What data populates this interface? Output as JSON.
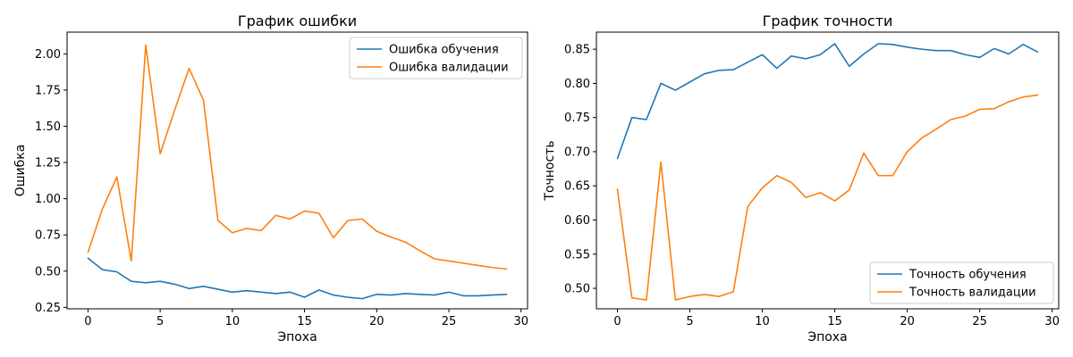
{
  "chart_data": [
    {
      "type": "line",
      "title": "График ошибки",
      "xlabel": "Эпоха",
      "ylabel": "Ошибка",
      "xlim": [
        -1.45,
        30.45
      ],
      "ylim": [
        0.24,
        2.15
      ],
      "xticks": [
        0,
        5,
        10,
        15,
        20,
        25,
        30
      ],
      "yticks": [
        0.25,
        0.5,
        0.75,
        1.0,
        1.25,
        1.5,
        1.75,
        2.0
      ],
      "ytick_labels": [
        "0.25",
        "0.50",
        "0.75",
        "1.00",
        "1.25",
        "1.50",
        "1.75",
        "2.00"
      ],
      "legend_position": "top-right",
      "x": [
        0,
        1,
        2,
        3,
        4,
        5,
        6,
        7,
        8,
        9,
        10,
        11,
        12,
        13,
        14,
        15,
        16,
        17,
        18,
        19,
        20,
        21,
        22,
        23,
        24,
        25,
        26,
        27,
        28,
        29
      ],
      "series": [
        {
          "name": "Ошибка обучения",
          "color": "#1f77b4",
          "values": [
            0.59,
            0.51,
            0.495,
            0.43,
            0.42,
            0.43,
            0.41,
            0.38,
            0.395,
            0.375,
            0.355,
            0.365,
            0.355,
            0.345,
            0.355,
            0.32,
            0.37,
            0.335,
            0.32,
            0.31,
            0.34,
            0.335,
            0.345,
            0.34,
            0.335,
            0.355,
            0.33,
            0.33,
            0.335,
            0.34
          ]
        },
        {
          "name": "Ошибка валидации",
          "color": "#ff7f0e",
          "values": [
            0.63,
            0.93,
            1.15,
            0.57,
            2.06,
            1.31,
            1.61,
            1.9,
            1.68,
            0.85,
            0.765,
            0.795,
            0.78,
            0.885,
            0.86,
            0.915,
            0.9,
            0.73,
            0.85,
            0.86,
            0.775,
            0.735,
            0.7,
            0.64,
            0.585,
            0.57,
            0.555,
            0.54,
            0.525,
            0.515
          ]
        }
      ]
    },
    {
      "type": "line",
      "title": "График точности",
      "xlabel": "Эпоха",
      "ylabel": "Точность",
      "xlim": [
        -1.45,
        30.45
      ],
      "ylim": [
        0.47,
        0.875
      ],
      "xticks": [
        0,
        5,
        10,
        15,
        20,
        25,
        30
      ],
      "yticks": [
        0.5,
        0.55,
        0.6,
        0.65,
        0.7,
        0.75,
        0.8,
        0.85
      ],
      "ytick_labels": [
        "0.50",
        "0.55",
        "0.60",
        "0.65",
        "0.70",
        "0.75",
        "0.80",
        "0.85"
      ],
      "legend_position": "bottom-right",
      "x": [
        0,
        1,
        2,
        3,
        4,
        5,
        6,
        7,
        8,
        9,
        10,
        11,
        12,
        13,
        14,
        15,
        16,
        17,
        18,
        19,
        20,
        21,
        22,
        23,
        24,
        25,
        26,
        27,
        28,
        29
      ],
      "series": [
        {
          "name": "Точность обучения",
          "color": "#1f77b4",
          "values": [
            0.69,
            0.75,
            0.747,
            0.8,
            0.79,
            0.802,
            0.814,
            0.819,
            0.82,
            0.831,
            0.842,
            0.822,
            0.84,
            0.836,
            0.842,
            0.858,
            0.825,
            0.843,
            0.858,
            0.857,
            0.853,
            0.85,
            0.848,
            0.848,
            0.842,
            0.838,
            0.851,
            0.843,
            0.857,
            0.846
          ]
        },
        {
          "name": "Точность валидации",
          "color": "#ff7f0e",
          "values": [
            0.645,
            0.486,
            0.483,
            0.685,
            0.483,
            0.488,
            0.491,
            0.488,
            0.495,
            0.62,
            0.647,
            0.665,
            0.655,
            0.633,
            0.64,
            0.628,
            0.644,
            0.698,
            0.665,
            0.665,
            0.7,
            0.72,
            0.733,
            0.747,
            0.752,
            0.762,
            0.763,
            0.773,
            0.78,
            0.783
          ]
        }
      ]
    }
  ]
}
